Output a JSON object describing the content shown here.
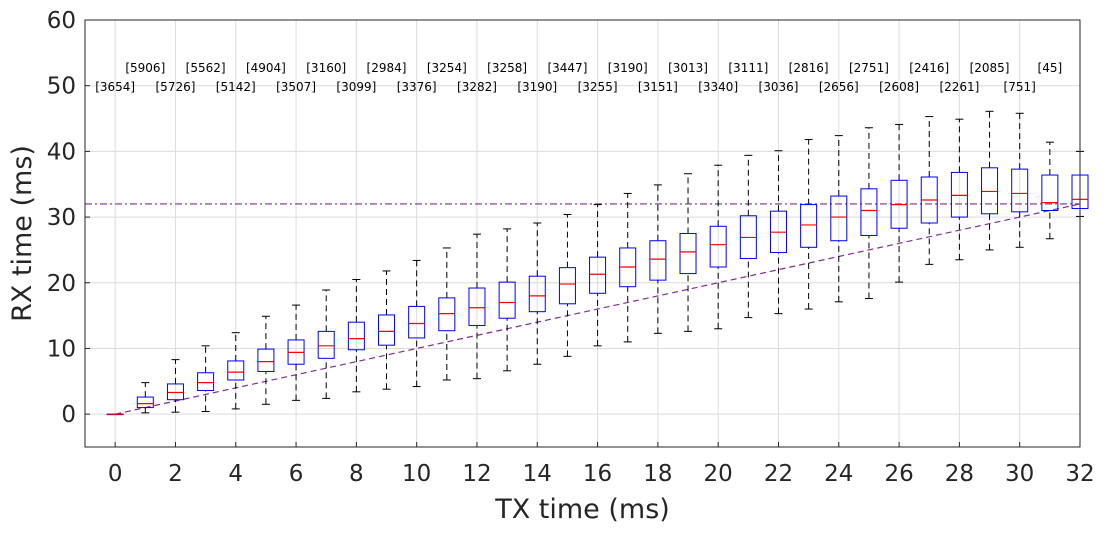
{
  "chart_data": {
    "type": "box",
    "xlabel": "TX time (ms)",
    "ylabel": "RX time (ms)",
    "xlim": [
      -1,
      32
    ],
    "ylim": [
      -5,
      60
    ],
    "xticks": [
      0,
      2,
      4,
      6,
      8,
      10,
      12,
      14,
      16,
      18,
      20,
      22,
      24,
      26,
      28,
      30,
      32
    ],
    "yticks": [
      0,
      10,
      20,
      30,
      40,
      50,
      60
    ],
    "grid": true,
    "threshold_line": {
      "y": 32,
      "color": "#7e2f8e",
      "style": "dash-dot"
    },
    "diagonal_line": {
      "from": [
        0,
        0
      ],
      "to": [
        32,
        32
      ],
      "color": "#7e2f8e",
      "style": "dashed"
    },
    "colors": {
      "box": "#0000ff",
      "median": "#ff0000",
      "whisker": "#000000",
      "grid": "#dcdcdc"
    },
    "boxes": [
      {
        "x": 0,
        "min": 0,
        "q1": 0,
        "median": 0,
        "q3": 0,
        "max": 0,
        "count": "[3654]"
      },
      {
        "x": 1,
        "min": 0.2,
        "q1": 1.0,
        "median": 1.6,
        "q3": 2.6,
        "max": 4.8,
        "count": "[5906]"
      },
      {
        "x": 2,
        "min": 0.3,
        "q1": 2.2,
        "median": 3.3,
        "q3": 4.6,
        "max": 8.3,
        "count": "[5726]"
      },
      {
        "x": 3,
        "min": 0.4,
        "q1": 3.6,
        "median": 4.8,
        "q3": 6.3,
        "max": 10.4,
        "count": "[5562]"
      },
      {
        "x": 4,
        "min": 0.8,
        "q1": 5.2,
        "median": 6.4,
        "q3": 8.1,
        "max": 12.4,
        "count": "[5142]"
      },
      {
        "x": 5,
        "min": 1.5,
        "q1": 6.5,
        "median": 8.0,
        "q3": 9.9,
        "max": 14.9,
        "count": "[4904]"
      },
      {
        "x": 6,
        "min": 2.1,
        "q1": 7.6,
        "median": 9.4,
        "q3": 11.3,
        "max": 16.6,
        "count": "[3507]"
      },
      {
        "x": 7,
        "min": 2.4,
        "q1": 8.5,
        "median": 10.4,
        "q3": 12.6,
        "max": 18.9,
        "count": "[3160]"
      },
      {
        "x": 8,
        "min": 3.4,
        "q1": 9.8,
        "median": 11.5,
        "q3": 14.0,
        "max": 20.5,
        "count": "[3099]"
      },
      {
        "x": 9,
        "min": 3.8,
        "q1": 10.5,
        "median": 12.6,
        "q3": 15.1,
        "max": 21.8,
        "count": "[2984]"
      },
      {
        "x": 10,
        "min": 4.2,
        "q1": 11.6,
        "median": 13.8,
        "q3": 16.4,
        "max": 23.4,
        "count": "[3376]"
      },
      {
        "x": 11,
        "min": 5.2,
        "q1": 12.7,
        "median": 15.3,
        "q3": 17.7,
        "max": 25.3,
        "count": "[3254]"
      },
      {
        "x": 12,
        "min": 5.4,
        "q1": 13.5,
        "median": 16.2,
        "q3": 19.2,
        "max": 27.4,
        "count": "[3282]"
      },
      {
        "x": 13,
        "min": 6.6,
        "q1": 14.6,
        "median": 17.0,
        "q3": 20.1,
        "max": 28.2,
        "count": "[3258]"
      },
      {
        "x": 14,
        "min": 7.6,
        "q1": 15.6,
        "median": 18.0,
        "q3": 21.0,
        "max": 29.1,
        "count": "[3190]"
      },
      {
        "x": 15,
        "min": 8.8,
        "q1": 16.8,
        "median": 19.8,
        "q3": 22.3,
        "max": 30.4,
        "count": "[3447]"
      },
      {
        "x": 16,
        "min": 10.4,
        "q1": 18.4,
        "median": 21.3,
        "q3": 23.9,
        "max": 31.9,
        "count": "[3255]"
      },
      {
        "x": 17,
        "min": 11.0,
        "q1": 19.4,
        "median": 22.4,
        "q3": 25.3,
        "max": 33.6,
        "count": "[3190]"
      },
      {
        "x": 18,
        "min": 12.3,
        "q1": 20.4,
        "median": 23.6,
        "q3": 26.4,
        "max": 34.9,
        "count": "[3151]"
      },
      {
        "x": 19,
        "min": 12.6,
        "q1": 21.4,
        "median": 24.7,
        "q3": 27.5,
        "max": 36.6,
        "count": "[3013]"
      },
      {
        "x": 20,
        "min": 13.0,
        "q1": 22.4,
        "median": 25.8,
        "q3": 28.6,
        "max": 37.9,
        "count": "[3340]"
      },
      {
        "x": 21,
        "min": 14.7,
        "q1": 23.7,
        "median": 26.9,
        "q3": 30.2,
        "max": 39.4,
        "count": "[3111]"
      },
      {
        "x": 22,
        "min": 15.3,
        "q1": 24.6,
        "median": 27.7,
        "q3": 30.9,
        "max": 40.1,
        "count": "[3036]"
      },
      {
        "x": 23,
        "min": 16.0,
        "q1": 25.4,
        "median": 28.8,
        "q3": 31.9,
        "max": 41.8,
        "count": "[2816]"
      },
      {
        "x": 24,
        "min": 17.1,
        "q1": 26.4,
        "median": 30.0,
        "q3": 33.2,
        "max": 42.4,
        "count": "[2656]"
      },
      {
        "x": 25,
        "min": 17.6,
        "q1": 27.2,
        "median": 31.0,
        "q3": 34.3,
        "max": 43.6,
        "count": "[2751]"
      },
      {
        "x": 26,
        "min": 20.1,
        "q1": 28.3,
        "median": 31.9,
        "q3": 35.6,
        "max": 44.1,
        "count": "[2608]"
      },
      {
        "x": 27,
        "min": 22.8,
        "q1": 29.1,
        "median": 32.6,
        "q3": 36.1,
        "max": 45.3,
        "count": "[2416]"
      },
      {
        "x": 28,
        "min": 23.5,
        "q1": 30.0,
        "median": 33.3,
        "q3": 36.8,
        "max": 44.9,
        "count": "[2261]"
      },
      {
        "x": 29,
        "min": 25.0,
        "q1": 30.5,
        "median": 33.9,
        "q3": 37.5,
        "max": 46.1,
        "count": "[2085]"
      },
      {
        "x": 30,
        "min": 25.4,
        "q1": 30.8,
        "median": 33.6,
        "q3": 37.3,
        "max": 45.8,
        "count": "[751]"
      },
      {
        "x": 31,
        "min": 26.7,
        "q1": 31.0,
        "median": 32.2,
        "q3": 36.4,
        "max": 41.4,
        "count": "[45]"
      },
      {
        "x": 32,
        "min": 30.1,
        "q1": 31.3,
        "median": 32.7,
        "q3": 36.4,
        "max": 40.0,
        "count": ""
      }
    ]
  }
}
